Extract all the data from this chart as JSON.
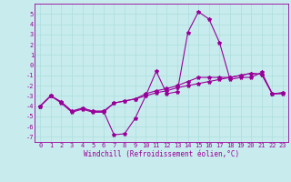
{
  "xlabel": "Windchill (Refroidissement éolien,°C)",
  "x": [
    0,
    1,
    2,
    3,
    4,
    5,
    6,
    7,
    8,
    9,
    10,
    11,
    12,
    13,
    14,
    15,
    16,
    17,
    18,
    19,
    20,
    21,
    22,
    23
  ],
  "line1_y": [
    -4,
    -3,
    -3.6,
    -4.5,
    -4.2,
    -4.5,
    -4.5,
    -6.8,
    -6.7,
    -5.2,
    -3.0,
    -0.6,
    -2.8,
    -2.6,
    3.2,
    5.2,
    4.5,
    2.2,
    -1.4,
    -1.2,
    -1.2,
    -0.7,
    -2.8,
    -2.8
  ],
  "line2_y": [
    -4.0,
    -3.0,
    -3.7,
    -4.6,
    -4.3,
    -4.6,
    -4.6,
    -3.7,
    -3.5,
    -3.3,
    -3.0,
    -2.7,
    -2.5,
    -2.2,
    -2.0,
    -1.8,
    -1.6,
    -1.4,
    -1.2,
    -1.0,
    -0.8,
    -0.9,
    -2.8,
    -2.7
  ],
  "line3_y": [
    -4.0,
    -3.0,
    -3.6,
    -4.5,
    -4.2,
    -4.5,
    -4.5,
    -3.7,
    -3.5,
    -3.3,
    -2.8,
    -2.5,
    -2.3,
    -2.0,
    -1.6,
    -1.2,
    -1.2,
    -1.2,
    -1.2,
    -1.0,
    -0.8,
    -0.9,
    -2.8,
    -2.7
  ],
  "ylim": [
    -7.5,
    6.0
  ],
  "yticks": [
    -7,
    -6,
    -5,
    -4,
    -3,
    -2,
    -1,
    0,
    1,
    2,
    3,
    4,
    5
  ],
  "xlim": [
    -0.5,
    23.5
  ],
  "bg_color": "#c8eced",
  "grid_color": "#aadddd",
  "line_color": "#990099",
  "line_width": 0.8,
  "marker": "*",
  "marker_size": 3.0,
  "tick_fontsize": 5.0,
  "xlabel_fontsize": 5.5
}
